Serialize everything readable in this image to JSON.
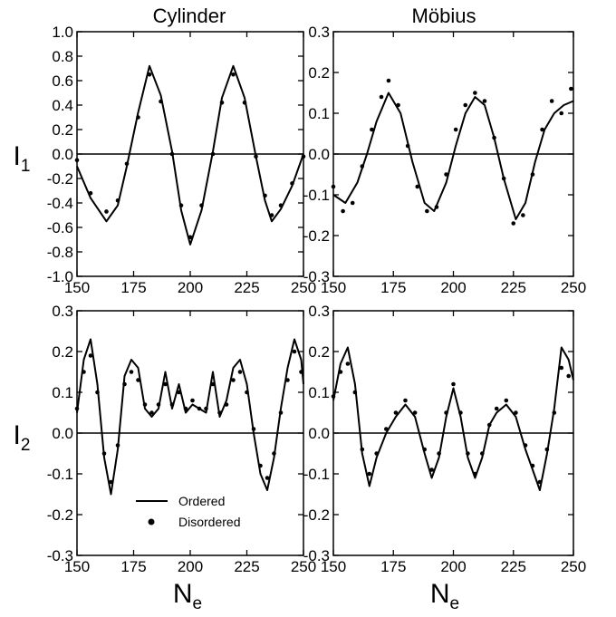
{
  "column_titles": [
    "Cylinder",
    "Möbius"
  ],
  "ylabels": {
    "top": {
      "main": "I",
      "sub": "1"
    },
    "bottom": {
      "main": "I",
      "sub": "2"
    }
  },
  "xlabels": {
    "left": {
      "main": "N",
      "sub": "e"
    },
    "right": {
      "main": "N",
      "sub": "e"
    }
  },
  "legend": {
    "ordered": "Ordered",
    "disordered": "Disordered",
    "placement": "bottom-left of lower-left panel"
  },
  "colors": {
    "ink": "#000000",
    "background": "#ffffff"
  },
  "chart_data": [
    {
      "type": "line",
      "panel": "top-left",
      "xlim": [
        150,
        250
      ],
      "ylim": [
        -1.0,
        1.0
      ],
      "xticks": [
        150,
        175,
        200,
        225,
        250
      ],
      "yticks": [
        -1.0,
        -0.8,
        -0.6,
        -0.4,
        -0.2,
        0.0,
        0.2,
        0.4,
        0.6,
        0.8,
        1.0
      ],
      "xtick_labels": [
        "150",
        "175",
        "200",
        "225",
        "250"
      ],
      "ytick_labels": [
        "-1.0",
        "-0.8",
        "-0.6",
        "-0.4",
        "-0.2",
        "0.0",
        "0.2",
        "0.4",
        "0.6",
        "0.8",
        "1.0"
      ],
      "zero_line": true,
      "series": [
        {
          "style": "line",
          "x": [
            150,
            156,
            163,
            168,
            172,
            177,
            182,
            187,
            192,
            196,
            200,
            205,
            210,
            214,
            219,
            224,
            229,
            233,
            236,
            240,
            245,
            250
          ],
          "y": [
            -0.1,
            -0.36,
            -0.55,
            -0.42,
            -0.1,
            0.34,
            0.72,
            0.48,
            0.02,
            -0.46,
            -0.74,
            -0.46,
            0.02,
            0.46,
            0.72,
            0.46,
            -0.02,
            -0.38,
            -0.55,
            -0.45,
            -0.26,
            0.0
          ]
        },
        {
          "style": "points",
          "x": [
            150,
            156,
            163,
            168,
            172,
            177,
            182,
            187,
            192,
            196,
            200,
            205,
            210,
            214,
            219,
            224,
            229,
            233,
            236,
            240,
            245,
            250
          ],
          "y": [
            -0.05,
            -0.32,
            -0.47,
            -0.38,
            -0.08,
            0.3,
            0.65,
            0.43,
            0.0,
            -0.42,
            -0.68,
            -0.42,
            0.0,
            0.42,
            0.65,
            0.42,
            -0.02,
            -0.34,
            -0.5,
            -0.42,
            -0.24,
            -0.02
          ]
        }
      ]
    },
    {
      "type": "line",
      "panel": "top-right",
      "xlim": [
        150,
        250
      ],
      "ylim": [
        -0.3,
        0.3
      ],
      "xticks": [
        150,
        175,
        200,
        225,
        250
      ],
      "yticks": [
        -0.3,
        -0.2,
        -0.1,
        0.0,
        0.1,
        0.2,
        0.3
      ],
      "xtick_labels": [
        "150",
        "175",
        "200",
        "225",
        "250"
      ],
      "ytick_labels": [
        "-0.3",
        "-0.2",
        "-0.1",
        "0.0",
        "0.1",
        "0.2",
        "0.3"
      ],
      "zero_line": true,
      "series": [
        {
          "style": "line",
          "x": [
            150,
            155,
            160,
            164,
            168,
            173,
            178,
            183,
            188,
            192,
            197,
            201,
            205,
            209,
            213,
            217,
            221,
            226,
            230,
            234,
            238,
            242,
            246,
            250
          ],
          "y": [
            -0.1,
            -0.12,
            -0.07,
            0.0,
            0.08,
            0.15,
            0.1,
            -0.02,
            -0.12,
            -0.14,
            -0.07,
            0.02,
            0.1,
            0.14,
            0.12,
            0.04,
            -0.06,
            -0.16,
            -0.12,
            -0.02,
            0.06,
            0.1,
            0.12,
            0.13
          ]
        },
        {
          "style": "points",
          "x": [
            150,
            154,
            158,
            162,
            166,
            170,
            173,
            177,
            181,
            185,
            189,
            193,
            197,
            201,
            205,
            209,
            213,
            217,
            221,
            225,
            229,
            233,
            237,
            241,
            245,
            249
          ],
          "y": [
            -0.08,
            -0.14,
            -0.12,
            -0.03,
            0.06,
            0.14,
            0.18,
            0.12,
            0.02,
            -0.08,
            -0.14,
            -0.13,
            -0.05,
            0.06,
            0.12,
            0.15,
            0.13,
            0.04,
            -0.06,
            -0.17,
            -0.15,
            -0.05,
            0.06,
            0.13,
            0.1,
            0.16
          ]
        }
      ]
    },
    {
      "type": "line",
      "panel": "bottom-left",
      "xlim": [
        150,
        250
      ],
      "ylim": [
        -0.3,
        0.3
      ],
      "xticks": [
        150,
        175,
        200,
        225,
        250
      ],
      "yticks": [
        -0.3,
        -0.2,
        -0.1,
        0.0,
        0.1,
        0.2,
        0.3
      ],
      "xtick_labels": [
        "150",
        "175",
        "200",
        "225",
        "250"
      ],
      "ytick_labels": [
        "-0.3",
        "-0.2",
        "-0.1",
        "0.0",
        "0.1",
        "0.2",
        "0.3"
      ],
      "zero_line": true,
      "series": [
        {
          "name": "Ordered",
          "style": "line",
          "x": [
            150,
            153,
            156,
            159,
            162,
            165,
            168,
            171,
            174,
            177,
            180,
            183,
            186,
            189,
            192,
            195,
            198,
            201,
            204,
            207,
            210,
            213,
            216,
            219,
            222,
            225,
            228,
            231,
            234,
            237,
            240,
            243,
            246,
            249,
            250
          ],
          "y": [
            0.05,
            0.18,
            0.23,
            0.12,
            -0.06,
            -0.15,
            -0.04,
            0.14,
            0.18,
            0.16,
            0.06,
            0.04,
            0.06,
            0.15,
            0.06,
            0.12,
            0.05,
            0.07,
            0.06,
            0.05,
            0.15,
            0.04,
            0.08,
            0.16,
            0.18,
            0.12,
            0.0,
            -0.1,
            -0.14,
            -0.06,
            0.06,
            0.16,
            0.23,
            0.18,
            0.12
          ]
        },
        {
          "name": "Disordered",
          "style": "points",
          "x": [
            150,
            153,
            156,
            159,
            162,
            165,
            168,
            171,
            174,
            177,
            180,
            183,
            186,
            189,
            192,
            195,
            198,
            201,
            204,
            207,
            210,
            213,
            216,
            219,
            222,
            225,
            228,
            231,
            234,
            237,
            240,
            243,
            246,
            249
          ],
          "y": [
            0.06,
            0.15,
            0.19,
            0.1,
            -0.05,
            -0.12,
            -0.03,
            0.12,
            0.15,
            0.13,
            0.07,
            0.05,
            0.07,
            0.12,
            0.07,
            0.1,
            0.06,
            0.08,
            0.06,
            0.06,
            0.12,
            0.05,
            0.07,
            0.13,
            0.15,
            0.1,
            0.01,
            -0.08,
            -0.11,
            -0.05,
            0.05,
            0.13,
            0.2,
            0.15
          ]
        }
      ]
    },
    {
      "type": "line",
      "panel": "bottom-right",
      "xlim": [
        150,
        250
      ],
      "ylim": [
        -0.3,
        0.3
      ],
      "xticks": [
        150,
        175,
        200,
        225,
        250
      ],
      "yticks": [
        -0.3,
        -0.2,
        -0.1,
        0.0,
        0.1,
        0.2,
        0.3
      ],
      "xtick_labels": [
        "150",
        "175",
        "200",
        "225",
        "250"
      ],
      "ytick_labels": [
        "-0.3",
        "-0.2",
        "-0.1",
        "0.0",
        "0.1",
        "0.2",
        "0.3"
      ],
      "zero_line": true,
      "series": [
        {
          "style": "line",
          "x": [
            150,
            153,
            156,
            159,
            162,
            165,
            168,
            172,
            176,
            180,
            184,
            188,
            191,
            194,
            197,
            200,
            203,
            206,
            209,
            212,
            215,
            218,
            222,
            226,
            230,
            233,
            236,
            239,
            242,
            245,
            248,
            250
          ],
          "y": [
            0.08,
            0.17,
            0.21,
            0.12,
            -0.05,
            -0.13,
            -0.06,
            0.0,
            0.04,
            0.07,
            0.04,
            -0.05,
            -0.11,
            -0.06,
            0.04,
            0.11,
            0.04,
            -0.06,
            -0.11,
            -0.06,
            0.02,
            0.05,
            0.07,
            0.04,
            -0.04,
            -0.09,
            -0.14,
            -0.05,
            0.06,
            0.21,
            0.18,
            0.13
          ]
        },
        {
          "style": "points",
          "x": [
            150,
            153,
            156,
            159,
            162,
            165,
            168,
            172,
            176,
            180,
            184,
            188,
            191,
            194,
            197,
            200,
            203,
            206,
            209,
            212,
            215,
            218,
            222,
            226,
            230,
            233,
            236,
            239,
            242,
            245,
            248
          ],
          "y": [
            0.09,
            0.15,
            0.17,
            0.1,
            -0.04,
            -0.1,
            -0.05,
            0.01,
            0.05,
            0.08,
            0.05,
            -0.04,
            -0.09,
            -0.05,
            0.05,
            0.12,
            0.05,
            -0.05,
            -0.1,
            -0.05,
            0.02,
            0.06,
            0.08,
            0.05,
            -0.03,
            -0.08,
            -0.12,
            -0.04,
            0.05,
            0.16,
            0.14
          ]
        }
      ]
    }
  ]
}
